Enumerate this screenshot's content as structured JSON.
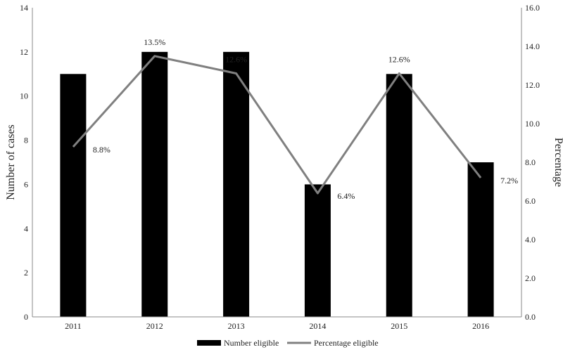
{
  "chart_data": {
    "type": "bar",
    "categories": [
      "2011",
      "2012",
      "2013",
      "2014",
      "2015",
      "2016"
    ],
    "series": [
      {
        "name": "Number eligible",
        "type": "bar",
        "axis": "left",
        "values": [
          11,
          12,
          12,
          6,
          11,
          7
        ],
        "color": "#000000"
      },
      {
        "name": "Percentage eligible",
        "type": "line",
        "axis": "right",
        "values": [
          8.8,
          13.5,
          12.6,
          6.4,
          12.6,
          7.2
        ],
        "labels": [
          "8.8%",
          "13.5%",
          "12.6%",
          "6.4%",
          "12.6%",
          "7.2%"
        ],
        "color": "#808080"
      }
    ],
    "ylabel": "Number of cases",
    "ylim": [
      0,
      14
    ],
    "yticks": [
      "0",
      "2",
      "4",
      "6",
      "8",
      "10",
      "12",
      "14"
    ],
    "y2label": "Percentage",
    "y2lim": [
      0,
      16
    ],
    "y2ticks": [
      "0.0",
      "2.0",
      "4.0",
      "6.0",
      "8.0",
      "10.0",
      "12.0",
      "14.0",
      "16.0"
    ],
    "grid": false,
    "legend": "bottom"
  }
}
